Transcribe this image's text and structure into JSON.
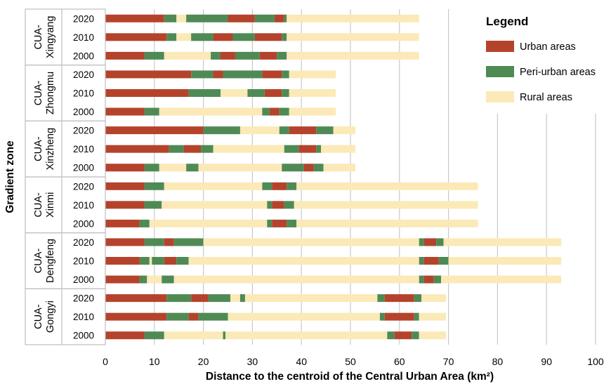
{
  "chart_data": {
    "type": "bar",
    "orientation": "horizontal",
    "stacked": true,
    "xlabel": "Distance to the centroid of the Central Urban Area (km²)",
    "ylabel": "Gradient zone",
    "xlim": [
      0,
      100
    ],
    "xticks": [
      0,
      10,
      20,
      30,
      40,
      50,
      60,
      70,
      80,
      90,
      100
    ],
    "grid": "vertical",
    "legend": {
      "title": "Legend",
      "position": "top-right",
      "items": [
        {
          "name": "Urban areas",
          "color": "#b5432b"
        },
        {
          "name": "Peri-urban areas",
          "color": "#4f8a55"
        },
        {
          "name": "Rural areas",
          "color": "#fbe9b7"
        }
      ]
    },
    "colors": {
      "urban": "#b5432b",
      "peri": "#4f8a55",
      "rural": "#fbe9b7"
    },
    "groups": [
      {
        "label": "CUA-\nXingyang",
        "years": [
          {
            "year": "2020",
            "segments": [
              [
                "urban",
                0,
                12
              ],
              [
                "peri",
                12,
                14.5
              ],
              [
                "rural",
                14.5,
                16.5
              ],
              [
                "peri",
                16.5,
                25
              ],
              [
                "urban",
                25,
                30.5
              ],
              [
                "peri",
                30.5,
                34.5
              ],
              [
                "urban",
                34.5,
                36.5
              ],
              [
                "peri",
                36.5,
                37
              ],
              [
                "rural",
                37,
                64
              ]
            ]
          },
          {
            "year": "2010",
            "segments": [
              [
                "urban",
                0,
                12.5
              ],
              [
                "peri",
                12.5,
                14.5
              ],
              [
                "rural",
                14.5,
                17.5
              ],
              [
                "peri",
                17.5,
                22
              ],
              [
                "urban",
                22,
                26
              ],
              [
                "peri",
                26,
                30.5
              ],
              [
                "urban",
                30.5,
                36
              ],
              [
                "peri",
                36,
                37
              ],
              [
                "rural",
                37,
                64
              ]
            ]
          },
          {
            "year": "2000",
            "segments": [
              [
                "urban",
                0,
                8
              ],
              [
                "peri",
                8,
                12
              ],
              [
                "rural",
                12,
                21.5
              ],
              [
                "peri",
                21.5,
                23.5
              ],
              [
                "urban",
                23.5,
                26.5
              ],
              [
                "peri",
                26.5,
                31.5
              ],
              [
                "urban",
                31.5,
                35
              ],
              [
                "peri",
                35,
                37
              ],
              [
                "rural",
                37,
                64
              ]
            ]
          }
        ]
      },
      {
        "label": "CUA-\nZhongmu",
        "years": [
          {
            "year": "2020",
            "segments": [
              [
                "urban",
                0,
                17.5
              ],
              [
                "peri",
                17.5,
                22
              ],
              [
                "urban",
                22,
                24
              ],
              [
                "peri",
                24,
                32
              ],
              [
                "urban",
                32,
                36
              ],
              [
                "peri",
                36,
                37.5
              ],
              [
                "rural",
                37.5,
                47
              ]
            ]
          },
          {
            "year": "2010",
            "segments": [
              [
                "urban",
                0,
                17
              ],
              [
                "peri",
                17,
                23.5
              ],
              [
                "rural",
                23.5,
                29
              ],
              [
                "peri",
                29,
                32.5
              ],
              [
                "urban",
                32.5,
                36
              ],
              [
                "peri",
                36,
                37.5
              ],
              [
                "rural",
                37.5,
                47
              ]
            ]
          },
          {
            "year": "2000",
            "segments": [
              [
                "urban",
                0,
                8
              ],
              [
                "peri",
                8,
                11
              ],
              [
                "rural",
                11,
                32
              ],
              [
                "peri",
                32,
                33.5
              ],
              [
                "urban",
                33.5,
                35.5
              ],
              [
                "peri",
                35.5,
                37.5
              ],
              [
                "rural",
                37.5,
                47
              ]
            ]
          }
        ]
      },
      {
        "label": "CUA-\nXinzheng",
        "years": [
          {
            "year": "2020",
            "segments": [
              [
                "urban",
                0,
                20
              ],
              [
                "peri",
                20,
                27.5
              ],
              [
                "rural",
                27.5,
                35.5
              ],
              [
                "peri",
                35.5,
                37.5
              ],
              [
                "urban",
                37.5,
                43
              ],
              [
                "peri",
                43,
                46.5
              ],
              [
                "rural",
                46.5,
                51
              ]
            ]
          },
          {
            "year": "2010",
            "segments": [
              [
                "urban",
                0,
                13
              ],
              [
                "peri",
                13,
                16
              ],
              [
                "urban",
                16,
                19.5
              ],
              [
                "peri",
                19.5,
                22
              ],
              [
                "rural",
                22,
                36.5
              ],
              [
                "peri",
                36.5,
                39.5
              ],
              [
                "urban",
                39.5,
                43
              ],
              [
                "peri",
                43,
                44
              ],
              [
                "rural",
                44,
                51
              ]
            ]
          },
          {
            "year": "2000",
            "segments": [
              [
                "urban",
                0,
                8
              ],
              [
                "peri",
                8,
                11
              ],
              [
                "rural",
                11,
                16.5
              ],
              [
                "peri",
                16.5,
                19
              ],
              [
                "rural",
                19,
                36
              ],
              [
                "peri",
                36,
                40.5
              ],
              [
                "urban",
                40.5,
                42.5
              ],
              [
                "peri",
                42.5,
                44.5
              ],
              [
                "rural",
                44.5,
                51
              ]
            ]
          }
        ]
      },
      {
        "label": "CUA-\nXinmi",
        "years": [
          {
            "year": "2020",
            "segments": [
              [
                "urban",
                0,
                8
              ],
              [
                "peri",
                8,
                12
              ],
              [
                "rural",
                12,
                32
              ],
              [
                "peri",
                32,
                34
              ],
              [
                "urban",
                34,
                37
              ],
              [
                "peri",
                37,
                39
              ],
              [
                "rural",
                39,
                76
              ]
            ]
          },
          {
            "year": "2010",
            "segments": [
              [
                "urban",
                0,
                8
              ],
              [
                "peri",
                8,
                11.5
              ],
              [
                "rural",
                11.5,
                33
              ],
              [
                "peri",
                33,
                34
              ],
              [
                "urban",
                34,
                36.5
              ],
              [
                "peri",
                36.5,
                38.5
              ],
              [
                "rural",
                38.5,
                76
              ]
            ]
          },
          {
            "year": "2000",
            "segments": [
              [
                "urban",
                0,
                7
              ],
              [
                "peri",
                7,
                9
              ],
              [
                "rural",
                9,
                33
              ],
              [
                "peri",
                33,
                34
              ],
              [
                "urban",
                34,
                37
              ],
              [
                "peri",
                37,
                39
              ],
              [
                "rural",
                39,
                76
              ]
            ]
          }
        ]
      },
      {
        "label": "CUA-\nDengfeng",
        "years": [
          {
            "year": "2020",
            "segments": [
              [
                "urban",
                0,
                8
              ],
              [
                "peri",
                8,
                12
              ],
              [
                "urban",
                12,
                14
              ],
              [
                "peri",
                14,
                20
              ],
              [
                "rural",
                20,
                64
              ],
              [
                "peri",
                64,
                65
              ],
              [
                "urban",
                65,
                67.5
              ],
              [
                "peri",
                67.5,
                69
              ],
              [
                "rural",
                69,
                93
              ]
            ]
          },
          {
            "year": "2010",
            "segments": [
              [
                "urban",
                0,
                7
              ],
              [
                "peri",
                7,
                9
              ],
              [
                "rural",
                9,
                9.5
              ],
              [
                "peri",
                9.5,
                12
              ],
              [
                "urban",
                12,
                14.5
              ],
              [
                "peri",
                14.5,
                17
              ],
              [
                "rural",
                17,
                64
              ],
              [
                "peri",
                64,
                65
              ],
              [
                "urban",
                65,
                68
              ],
              [
                "peri",
                68,
                70
              ],
              [
                "rural",
                70,
                93
              ]
            ]
          },
          {
            "year": "2000",
            "segments": [
              [
                "urban",
                0,
                7
              ],
              [
                "peri",
                7,
                8.5
              ],
              [
                "rural",
                8.5,
                11.5
              ],
              [
                "peri",
                11.5,
                14
              ],
              [
                "rural",
                14,
                64
              ],
              [
                "peri",
                64,
                65
              ],
              [
                "urban",
                65,
                67
              ],
              [
                "peri",
                67,
                68.5
              ],
              [
                "rural",
                68.5,
                93
              ]
            ]
          }
        ]
      },
      {
        "label": "CUA-\nGongyi",
        "years": [
          {
            "year": "2020",
            "segments": [
              [
                "urban",
                0,
                12.5
              ],
              [
                "peri",
                12.5,
                17.5
              ],
              [
                "urban",
                17.5,
                21
              ],
              [
                "peri",
                21,
                25.5
              ],
              [
                "rural",
                25.5,
                27.5
              ],
              [
                "peri",
                27.5,
                28.5
              ],
              [
                "rural",
                28.5,
                55.5
              ],
              [
                "peri",
                55.5,
                57
              ],
              [
                "urban",
                57,
                63
              ],
              [
                "peri",
                63,
                64.5
              ],
              [
                "rural",
                64.5,
                69.5
              ]
            ]
          },
          {
            "year": "2010",
            "segments": [
              [
                "urban",
                0,
                12.5
              ],
              [
                "peri",
                12.5,
                17
              ],
              [
                "urban",
                17,
                19
              ],
              [
                "peri",
                19,
                25
              ],
              [
                "rural",
                25,
                56
              ],
              [
                "peri",
                56,
                57
              ],
              [
                "urban",
                57,
                63
              ],
              [
                "peri",
                63,
                64
              ],
              [
                "rural",
                64,
                69.5
              ]
            ]
          },
          {
            "year": "2000",
            "segments": [
              [
                "urban",
                0,
                8
              ],
              [
                "peri",
                8,
                12
              ],
              [
                "rural",
                12,
                24
              ],
              [
                "peri",
                24,
                24.5
              ],
              [
                "rural",
                24.5,
                57.5
              ],
              [
                "peri",
                57.5,
                59
              ],
              [
                "urban",
                59,
                62.5
              ],
              [
                "peri",
                62.5,
                64
              ],
              [
                "rural",
                64,
                69.5
              ]
            ]
          }
        ]
      }
    ]
  }
}
